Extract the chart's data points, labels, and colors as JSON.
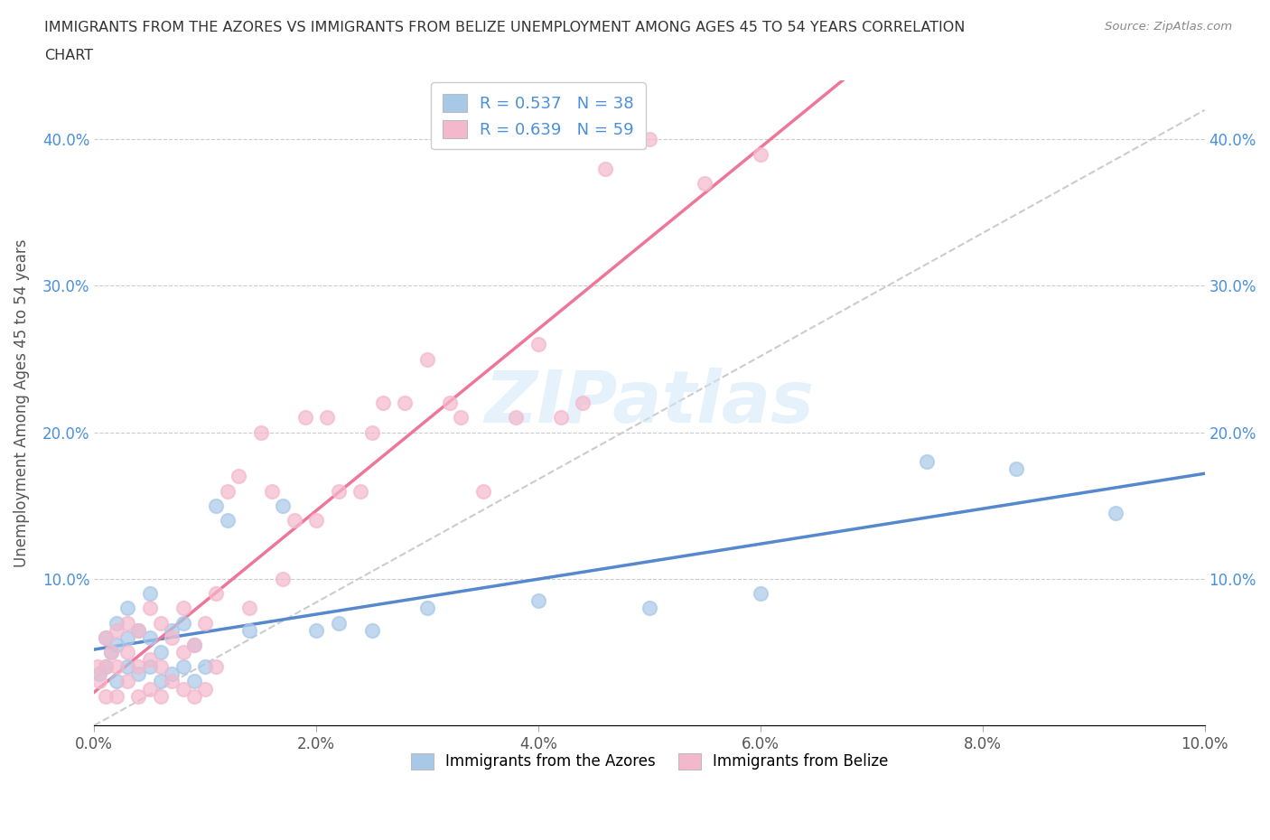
{
  "title_line1": "IMMIGRANTS FROM THE AZORES VS IMMIGRANTS FROM BELIZE UNEMPLOYMENT AMONG AGES 45 TO 54 YEARS CORRELATION",
  "title_line2": "CHART",
  "source": "Source: ZipAtlas.com",
  "ylabel": "Unemployment Among Ages 45 to 54 years",
  "watermark": "ZIPatlas",
  "azores_R": 0.537,
  "azores_N": 38,
  "belize_R": 0.639,
  "belize_N": 59,
  "azores_color": "#a8c8e8",
  "belize_color": "#f4b8cc",
  "azores_line_color": "#5588cc",
  "belize_line_color": "#ee7799",
  "gray_dash_color": "#cccccc",
  "xlim": [
    0.0,
    0.1
  ],
  "ylim": [
    0.0,
    0.44
  ],
  "xticks": [
    0.0,
    0.02,
    0.04,
    0.06,
    0.08,
    0.1
  ],
  "yticks": [
    0.0,
    0.1,
    0.2,
    0.3,
    0.4
  ],
  "xticklabels": [
    "0.0%",
    "2.0%",
    "4.0%",
    "6.0%",
    "8.0%",
    "10.0%"
  ],
  "yticklabels": [
    "",
    "10.0%",
    "20.0%",
    "30.0%",
    "40.0%"
  ],
  "legend_labels": [
    "Immigrants from the Azores",
    "Immigrants from Belize"
  ],
  "azores_x": [
    0.0005,
    0.001,
    0.001,
    0.0015,
    0.002,
    0.002,
    0.002,
    0.003,
    0.003,
    0.003,
    0.004,
    0.004,
    0.005,
    0.005,
    0.005,
    0.006,
    0.006,
    0.007,
    0.007,
    0.008,
    0.008,
    0.009,
    0.009,
    0.01,
    0.011,
    0.012,
    0.014,
    0.017,
    0.02,
    0.022,
    0.025,
    0.03,
    0.04,
    0.05,
    0.06,
    0.075,
    0.083,
    0.092
  ],
  "azores_y": [
    0.035,
    0.04,
    0.06,
    0.05,
    0.03,
    0.055,
    0.07,
    0.04,
    0.06,
    0.08,
    0.035,
    0.065,
    0.04,
    0.06,
    0.09,
    0.03,
    0.05,
    0.035,
    0.065,
    0.04,
    0.07,
    0.03,
    0.055,
    0.04,
    0.15,
    0.14,
    0.065,
    0.15,
    0.065,
    0.07,
    0.065,
    0.08,
    0.085,
    0.08,
    0.09,
    0.18,
    0.175,
    0.145
  ],
  "belize_x": [
    0.0003,
    0.0005,
    0.001,
    0.001,
    0.001,
    0.0015,
    0.002,
    0.002,
    0.002,
    0.003,
    0.003,
    0.003,
    0.004,
    0.004,
    0.004,
    0.005,
    0.005,
    0.005,
    0.006,
    0.006,
    0.006,
    0.007,
    0.007,
    0.008,
    0.008,
    0.008,
    0.009,
    0.009,
    0.01,
    0.01,
    0.011,
    0.011,
    0.012,
    0.013,
    0.014,
    0.015,
    0.016,
    0.017,
    0.018,
    0.019,
    0.02,
    0.021,
    0.022,
    0.024,
    0.025,
    0.026,
    0.028,
    0.03,
    0.032,
    0.033,
    0.035,
    0.038,
    0.04,
    0.042,
    0.044,
    0.046,
    0.05,
    0.055,
    0.06
  ],
  "belize_y": [
    0.04,
    0.03,
    0.02,
    0.04,
    0.06,
    0.05,
    0.02,
    0.04,
    0.065,
    0.03,
    0.05,
    0.07,
    0.02,
    0.04,
    0.065,
    0.025,
    0.045,
    0.08,
    0.02,
    0.04,
    0.07,
    0.03,
    0.06,
    0.025,
    0.05,
    0.08,
    0.02,
    0.055,
    0.025,
    0.07,
    0.04,
    0.09,
    0.16,
    0.17,
    0.08,
    0.2,
    0.16,
    0.1,
    0.14,
    0.21,
    0.14,
    0.21,
    0.16,
    0.16,
    0.2,
    0.22,
    0.22,
    0.25,
    0.22,
    0.21,
    0.16,
    0.21,
    0.26,
    0.21,
    0.22,
    0.38,
    0.4,
    0.37,
    0.39
  ]
}
